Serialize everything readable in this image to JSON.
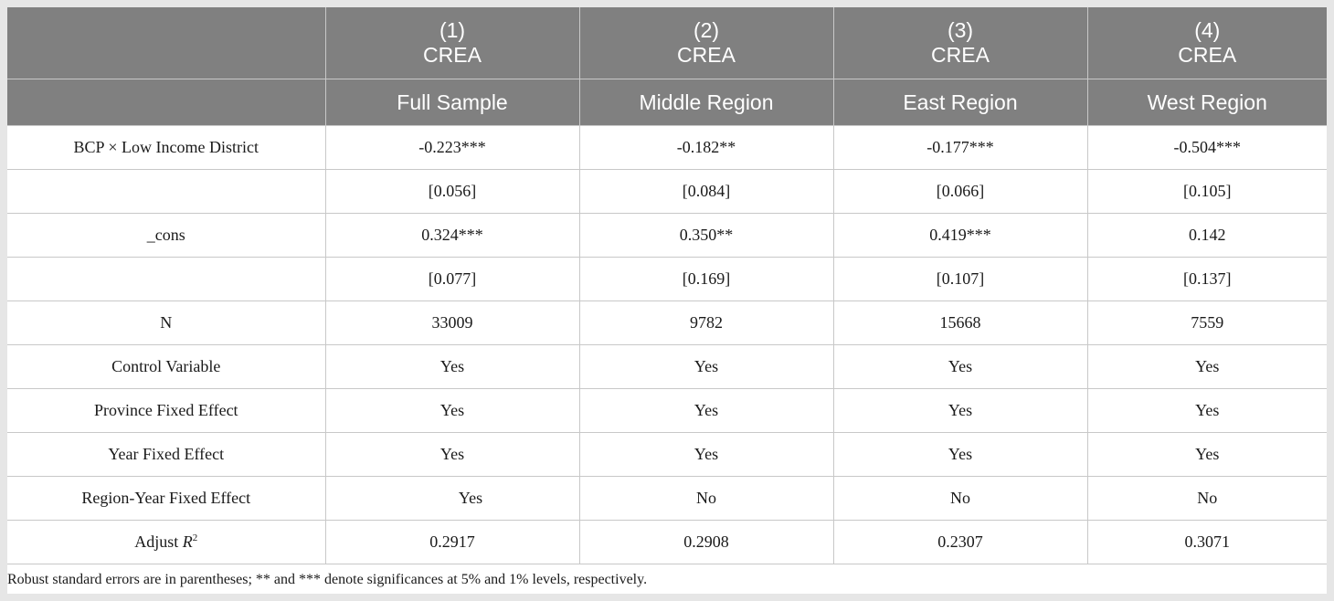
{
  "columns": [
    {
      "num": "(1)",
      "dv": "CREA",
      "sample": "Full Sample"
    },
    {
      "num": "(2)",
      "dv": "CREA",
      "sample": "Middle Region"
    },
    {
      "num": "(3)",
      "dv": "CREA",
      "sample": "East Region"
    },
    {
      "num": "(4)",
      "dv": "CREA",
      "sample": "West Region"
    }
  ],
  "rows": [
    {
      "label": "BCP × Low Income District",
      "values": [
        "-0.223***",
        "-0.182**",
        "-0.177***",
        "-0.504***"
      ]
    },
    {
      "label": "",
      "values": [
        "[0.056]",
        "[0.084]",
        "[0.066]",
        "[0.105]"
      ]
    },
    {
      "label": "_cons",
      "values": [
        "0.324***",
        "0.350**",
        "0.419***",
        "0.142"
      ]
    },
    {
      "label": "",
      "values": [
        "[0.077]",
        "[0.169]",
        "[0.107]",
        "[0.137]"
      ]
    },
    {
      "label": "N",
      "values": [
        "33009",
        "9782",
        "15668",
        "7559"
      ]
    },
    {
      "label": "Control Variable",
      "values": [
        "Yes",
        "Yes",
        "Yes",
        "Yes"
      ]
    },
    {
      "label": "Province Fixed Effect",
      "values": [
        "Yes",
        "Yes",
        "Yes",
        "Yes"
      ]
    },
    {
      "label": "Year Fixed Effect",
      "values": [
        "Yes",
        "Yes",
        "Yes",
        "Yes"
      ]
    },
    {
      "label": "Region-Year Fixed Effect",
      "values": [
        "Yes",
        "No",
        "No",
        "No"
      ]
    },
    {
      "label_prefix": "Adjust ",
      "label_var": "R",
      "label_sup": "2",
      "values": [
        "0.2917",
        "0.2908",
        "0.2307",
        "0.3071"
      ]
    }
  ],
  "note": "Robust standard errors are in parentheses; ** and *** denote significances at 5% and 1% levels, respectively."
}
